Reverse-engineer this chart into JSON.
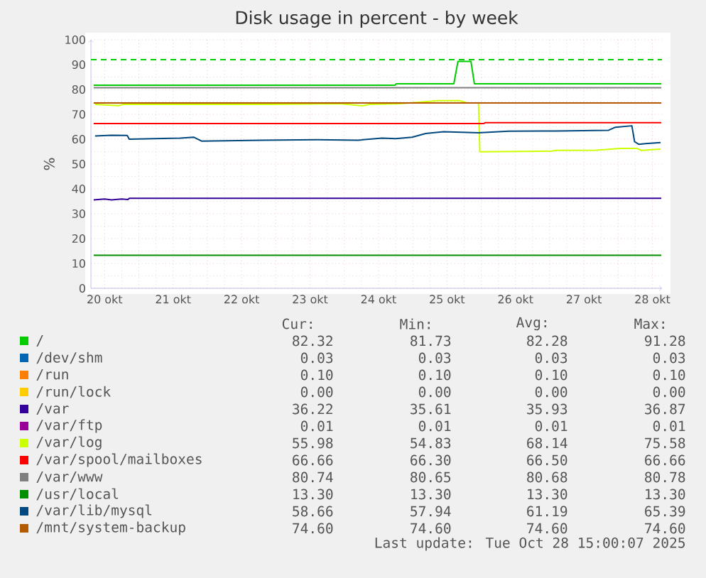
{
  "chart_data": {
    "type": "line",
    "title": "Disk usage in percent - by week",
    "ylabel": "%",
    "xlim": [
      20.3,
      28.64
    ],
    "ylim": [
      0,
      100
    ],
    "xticks": [
      {
        "value": 20.5,
        "label": "20 okt"
      },
      {
        "value": 21,
        "label": null
      },
      {
        "value": 21.5,
        "label": "21 okt"
      },
      {
        "value": 22,
        "label": null
      },
      {
        "value": 22.5,
        "label": "22 okt"
      },
      {
        "value": 23,
        "label": null
      },
      {
        "value": 23.5,
        "label": "23 okt"
      },
      {
        "value": 24,
        "label": null
      },
      {
        "value": 24.5,
        "label": "24 okt"
      },
      {
        "value": 25,
        "label": null
      },
      {
        "value": 25.5,
        "label": "25 okt"
      },
      {
        "value": 26,
        "label": null
      },
      {
        "value": 26.5,
        "label": "26 okt"
      },
      {
        "value": 27,
        "label": null
      },
      {
        "value": 27.5,
        "label": "27 okt"
      },
      {
        "value": 28,
        "label": null
      },
      {
        "value": 28.5,
        "label": "28 okt"
      }
    ],
    "yticks": [
      0,
      10,
      20,
      30,
      40,
      50,
      60,
      70,
      80,
      90,
      100
    ],
    "grid": true,
    "legend": "bottom",
    "ref_lines": [
      {
        "axis": "y",
        "value": 92,
        "color": "#00cc00",
        "line_style": "dashed"
      }
    ],
    "series": [
      {
        "name": "/",
        "color": "#00cc00",
        "x": [
          20.34,
          24.74,
          24.76,
          25.6,
          25.66,
          25.85,
          25.9,
          28.63
        ],
        "values": [
          81.7,
          81.7,
          82.3,
          82.3,
          91.3,
          91.3,
          82.3,
          82.3
        ]
      },
      {
        "name": "/dev/shm",
        "color": "#0066b3",
        "values": [
          null
        ]
      },
      {
        "name": "/run",
        "color": "#ff8000",
        "values": [
          null
        ]
      },
      {
        "name": "/run/lock",
        "color": "#ffcc00",
        "values": [
          null
        ]
      },
      {
        "name": "/var",
        "color": "#330099",
        "x": [
          20.34,
          20.5,
          20.6,
          20.75,
          20.84,
          20.86,
          28.63
        ],
        "values": [
          35.6,
          35.9,
          35.6,
          35.9,
          35.7,
          36.2,
          36.2
        ]
      },
      {
        "name": "/var/ftp",
        "color": "#990099",
        "values": [
          null
        ]
      },
      {
        "name": "/var/log",
        "color": "#ccff00",
        "x": [
          20.36,
          20.7,
          20.77,
          22.85,
          23.95,
          24.26,
          24.37,
          24.82,
          25.37,
          25.68,
          25.8,
          25.96,
          25.98,
          27.03,
          27.1,
          27.69,
          28.03,
          28.27,
          28.34,
          28.62
        ],
        "values": [
          74.0,
          73.5,
          74.0,
          74.0,
          74.3,
          73.4,
          74.0,
          74.3,
          75.5,
          75.5,
          74.6,
          74.6,
          54.9,
          55.2,
          55.5,
          55.6,
          56.3,
          56.3,
          55.5,
          55.98
        ]
      },
      {
        "name": "/var/spool/mailboxes",
        "color": "#ff0000",
        "x": [
          20.34,
          26.04,
          26.06,
          28.63
        ],
        "values": [
          66.3,
          66.3,
          66.66,
          66.66
        ]
      },
      {
        "name": "/var/www",
        "color": "#808080",
        "x": [
          20.34,
          28.63
        ],
        "values": [
          80.7,
          80.74
        ]
      },
      {
        "name": "/usr/local",
        "color": "#008f00",
        "x": [
          20.34,
          28.63
        ],
        "values": [
          13.3,
          13.3
        ]
      },
      {
        "name": "/var/lib/mysql",
        "color": "#00487d",
        "x": [
          20.36,
          20.6,
          20.83,
          20.86,
          21.6,
          21.8,
          21.92,
          22.8,
          23.6,
          24.2,
          24.55,
          24.75,
          24.99,
          25.19,
          25.45,
          25.96,
          26.4,
          27.1,
          27.86,
          27.96,
          28.2,
          28.24,
          28.3,
          28.4,
          28.62
        ],
        "values": [
          61.3,
          61.6,
          61.5,
          60.0,
          60.4,
          60.8,
          59.2,
          59.6,
          59.8,
          59.6,
          60.4,
          60.2,
          60.8,
          62.3,
          63.0,
          62.6,
          63.2,
          63.3,
          63.6,
          64.8,
          65.39,
          59.0,
          57.94,
          58.2,
          58.66
        ]
      },
      {
        "name": "/mnt/system-backup",
        "color": "#b35a00",
        "x": [
          20.34,
          28.63
        ],
        "values": [
          74.6,
          74.6
        ]
      }
    ],
    "annotations": [
      "Cur:",
      "Min:",
      "Avg:",
      "Max:",
      "82.32",
      "81.73",
      "82.28",
      "91.28",
      "0.03",
      "0.03",
      "0.03",
      "0.03",
      "0.10",
      "0.10",
      "0.10",
      "0.10",
      "0.00",
      "0.00",
      "0.00",
      "0.00",
      "36.22",
      "35.61",
      "35.93",
      "36.87",
      "0.01",
      "0.01",
      "0.01",
      "0.01",
      "55.98",
      "54.83",
      "68.14",
      "75.58",
      "66.66",
      "66.30",
      "66.50",
      "66.66",
      "80.74",
      "80.65",
      "80.68",
      "80.78",
      "13.30",
      "13.30",
      "13.30",
      "13.30",
      "58.66",
      "57.94",
      "61.19",
      "65.39",
      "74.60",
      "74.60",
      "74.60",
      "74.60",
      "Last update: Tue Oct 28 15:00:07 2025"
    ]
  }
}
